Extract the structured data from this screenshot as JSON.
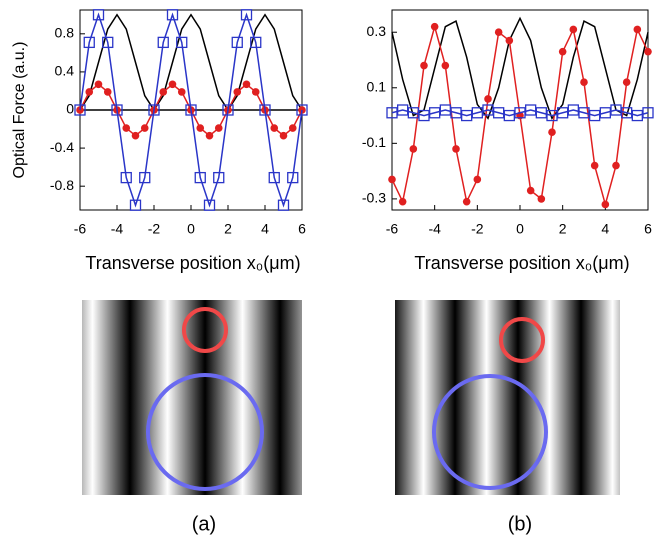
{
  "chart_data": [
    {
      "type": "line",
      "panel": "(a)",
      "y_label": "Optical Force (a.u.)",
      "x_label": "Transverse position x₀(μm)",
      "x": [
        -6,
        -5.5,
        -5,
        -4.5,
        -4,
        -3.5,
        -3,
        -2.5,
        -2,
        -1.5,
        -1,
        -0.5,
        0,
        0.5,
        1,
        1.5,
        2,
        2.5,
        3,
        3.5,
        4,
        4.5,
        5,
        5.5,
        6
      ],
      "series": [
        {
          "color": "#000000",
          "values": [
            0,
            0.15,
            0.5,
            0.85,
            1,
            0.85,
            0.5,
            0.15,
            0,
            0.15,
            0.5,
            0.85,
            1,
            0.85,
            0.5,
            0.15,
            0,
            0.15,
            0.5,
            0.85,
            1,
            0.85,
            0.5,
            0.15,
            0
          ]
        },
        {
          "color": "#e02020",
          "marker": "circle",
          "values": [
            0,
            0.19,
            0.27,
            0.19,
            0,
            -0.19,
            -0.27,
            -0.19,
            0,
            0.19,
            0.27,
            0.19,
            0,
            -0.19,
            -0.27,
            -0.19,
            0,
            0.19,
            0.27,
            0.19,
            0,
            -0.19,
            -0.27,
            -0.19,
            0
          ]
        },
        {
          "color": "#2a35c8",
          "marker": "square",
          "values": [
            0,
            0.71,
            1,
            0.71,
            0,
            -0.71,
            -1,
            -0.71,
            0,
            0.71,
            1,
            0.71,
            0,
            -0.71,
            -1,
            -0.71,
            0,
            0.71,
            1,
            0.71,
            0,
            -0.71,
            -1,
            -0.71,
            0
          ]
        }
      ],
      "xlim": [
        -6,
        6
      ],
      "xticks": [
        -6,
        -4,
        -2,
        0,
        2,
        4,
        6
      ],
      "ylim": [
        -1.05,
        1.05
      ],
      "yticks": [
        0.8,
        0.4,
        0,
        -0.4,
        -0.8
      ],
      "zero_line": true
    },
    {
      "type": "line",
      "panel": "(b)",
      "x_label": "Transverse position x₀(μm)",
      "x": [
        -6,
        -5.5,
        -5,
        -4.5,
        -4,
        -3.5,
        -3,
        -2.5,
        -2,
        -1.5,
        -1,
        -0.5,
        0,
        0.5,
        1,
        1.5,
        2,
        2.5,
        3,
        3.5,
        4,
        4.5,
        5,
        5.5,
        6
      ],
      "series": [
        {
          "color": "#000000",
          "values": [
            0.3,
            0.13,
            0,
            0.02,
            0.17,
            0.32,
            0.34,
            0.21,
            0.04,
            -0.01,
            0.1,
            0.27,
            0.35,
            0.27,
            0.1,
            -0.01,
            0.04,
            0.21,
            0.34,
            0.32,
            0.17,
            0.02,
            0,
            0.13,
            0.3
          ]
        },
        {
          "color": "#e02020",
          "marker": "circle",
          "values": [
            -0.23,
            -0.31,
            -0.12,
            0.18,
            0.32,
            0.18,
            -0.12,
            -0.31,
            -0.23,
            0.06,
            0.3,
            0.27,
            0,
            -0.27,
            -0.3,
            -0.06,
            0.23,
            0.31,
            0.12,
            -0.18,
            -0.32,
            -0.18,
            0.12,
            0.31,
            0.23
          ]
        },
        {
          "color": "#2a35c8",
          "marker": "square",
          "values": [
            0.01,
            0.02,
            0.01,
            0,
            0.01,
            0.02,
            0.01,
            0,
            0.01,
            0.02,
            0.01,
            0,
            0.01,
            0.02,
            0.01,
            0,
            0.01,
            0.02,
            0.01,
            0,
            0.01,
            0.02,
            0.01,
            0,
            0.01
          ]
        }
      ],
      "xlim": [
        -6,
        6
      ],
      "xticks": [
        -6,
        -4,
        -2,
        0,
        2,
        4,
        6
      ],
      "ylim": [
        -0.34,
        0.38
      ],
      "yticks": [
        0.3,
        0.1,
        -0.1,
        -0.3
      ],
      "zero_line": false
    }
  ]
}
